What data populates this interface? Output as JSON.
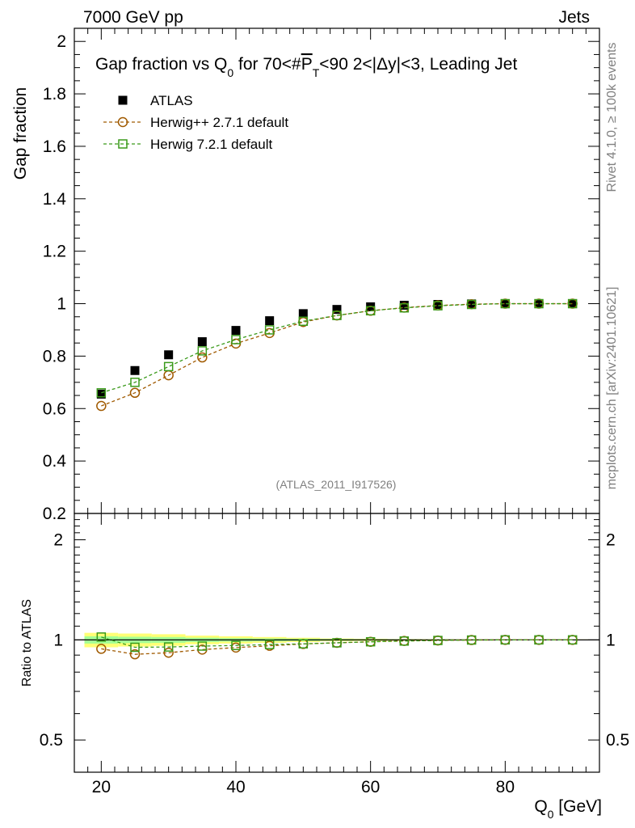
{
  "header": {
    "left": "7000 GeV pp",
    "right": "Jets"
  },
  "side_labels": {
    "rivet": "Rivet 4.1.0, ≥ 100k events",
    "mcplots": "mcplots.cern.ch [arXiv:2401.10621]"
  },
  "watermark": "(ATLAS_2011_I917526)",
  "colors": {
    "atlas": "#000000",
    "herwig_pp": "#a05a00",
    "herwig7": "#3a9a1a",
    "band_yellow": "#ffff66",
    "band_green": "#99ff99"
  },
  "chart_data": [
    {
      "type": "scatter",
      "title": "Gap fraction vs Q0 for 70<#PT<90  2<|Δy|<3, Leading Jet",
      "title_parts": {
        "a": "Gap fraction vs Q",
        "a_sub": "0",
        "b": " for 70<#",
        "c": "P",
        "c_sub": "T",
        "d": "<90  2<|Δy|<3, Leading Jet"
      },
      "ylabel": "Gap fraction",
      "xlim": [
        16,
        94
      ],
      "ylim": [
        0.2,
        2.05
      ],
      "yticks": [
        0.2,
        0.4,
        0.6,
        0.8,
        1,
        1.2,
        1.4,
        1.6,
        1.8,
        2
      ],
      "ytick_labels": [
        "0.2",
        "0.4",
        "0.6",
        "0.8",
        "1",
        "1.2",
        "1.4",
        "1.6",
        "1.8",
        "2"
      ],
      "legend": [
        "ATLAS",
        "Herwig++ 2.7.1 default",
        "Herwig 7.2.1 default"
      ],
      "legend_position": "top-left",
      "x": [
        20,
        25,
        30,
        35,
        40,
        45,
        50,
        55,
        60,
        65,
        70,
        75,
        80,
        85,
        90
      ],
      "series": [
        {
          "name": "ATLAS",
          "marker": "filled-square",
          "values": [
            0.655,
            0.745,
            0.805,
            0.855,
            0.898,
            0.935,
            0.962,
            0.978,
            0.988,
            0.994,
            0.997,
            0.999,
            1.0,
            1.0,
            1.0
          ]
        },
        {
          "name": "Herwig++ 2.7.1 default",
          "marker": "open-circle",
          "values": [
            0.61,
            0.66,
            0.727,
            0.795,
            0.848,
            0.888,
            0.93,
            0.955,
            0.973,
            0.985,
            0.993,
            0.998,
            1.0,
            1.0,
            1.0
          ]
        },
        {
          "name": "Herwig 7.2.1 default",
          "marker": "open-square",
          "values": [
            0.66,
            0.7,
            0.76,
            0.82,
            0.863,
            0.9,
            0.933,
            0.955,
            0.973,
            0.984,
            0.992,
            0.997,
            1.0,
            1.0,
            1.0
          ]
        }
      ]
    },
    {
      "type": "scatter",
      "ylabel": "Ratio to ATLAS",
      "xlabel": "Q0 [GeV]",
      "xlabel_parts": {
        "a": "Q",
        "a_sub": "0",
        "b": " [GeV]"
      },
      "yscale": "log",
      "xlim": [
        16,
        94
      ],
      "ylim": [
        0.4,
        2.4
      ],
      "xticks": [
        20,
        40,
        60,
        80
      ],
      "xtick_labels": [
        "20",
        "40",
        "60",
        "80"
      ],
      "yticks": [
        0.5,
        1,
        2
      ],
      "ytick_labels": [
        "0.5",
        "1",
        "2"
      ],
      "x": [
        20,
        25,
        30,
        35,
        40,
        45,
        50,
        55,
        60,
        65,
        70,
        75,
        80,
        85,
        90
      ],
      "uncertainty_band": {
        "yellow_halfwidth": [
          0.05,
          0.045,
          0.04,
          0.03,
          0.025,
          0.02,
          0.015,
          0.01,
          0.008,
          0.006,
          0.005,
          0.004,
          0.003,
          0.003,
          0.003
        ],
        "green_halfwidth": [
          0.025,
          0.022,
          0.02,
          0.015,
          0.012,
          0.01,
          0.008,
          0.006,
          0.005,
          0.004,
          0.003,
          0.002,
          0.002,
          0.002,
          0.002
        ]
      },
      "series": [
        {
          "name": "Herwig++ 2.7.1 default",
          "marker": "open-circle",
          "values": [
            0.94,
            0.905,
            0.915,
            0.935,
            0.948,
            0.96,
            0.972,
            0.98,
            0.987,
            0.993,
            0.996,
            0.999,
            1.0,
            1.0,
            1.0
          ]
        },
        {
          "name": "Herwig 7.2.1 default",
          "marker": "open-square",
          "values": [
            1.02,
            0.95,
            0.952,
            0.958,
            0.962,
            0.968,
            0.973,
            0.98,
            0.987,
            0.992,
            0.996,
            0.999,
            1.0,
            1.0,
            1.0
          ]
        }
      ]
    }
  ]
}
